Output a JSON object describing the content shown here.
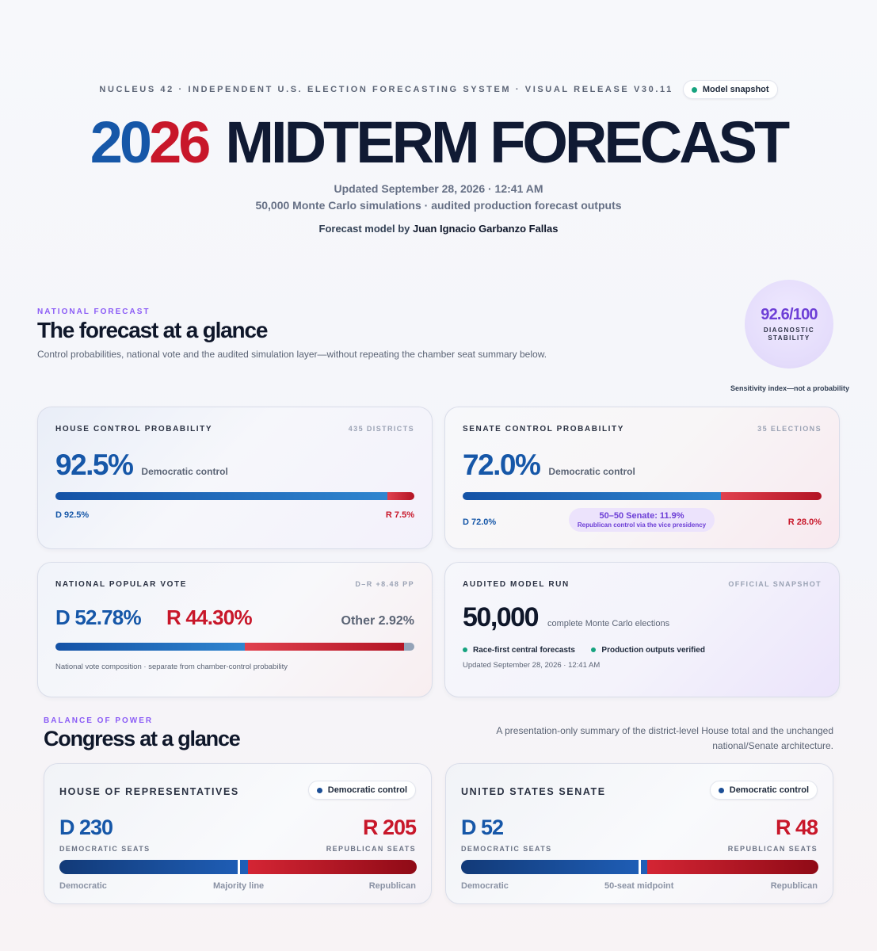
{
  "header": {
    "system_line": "NUCLEUS 42 · INDEPENDENT U.S. ELECTION FORECASTING SYSTEM · VISUAL RELEASE V30.11",
    "snapshot_pill": "Model snapshot",
    "title_year_a": "20",
    "title_year_b": "26",
    "title_rest": "MIDTERM FORECAST",
    "updated": "Updated September 28, 2026 · 12:41 AM",
    "simulations": "50,000 Monte Carlo simulations · audited production forecast outputs",
    "byline_prefix": "Forecast model by",
    "byline_name": "Juan Ignacio Garbanzo Fallas"
  },
  "national": {
    "eyebrow": "NATIONAL FORECAST",
    "title": "The forecast at a glance",
    "subtitle": "Control probabilities, national vote and the audited simulation layer—without repeating the chamber seat summary below.",
    "diagnostic_score": "92.6/100",
    "diagnostic_label_1": "DIAGNOSTIC",
    "diagnostic_label_2": "STABILITY",
    "sensitivity_note": "Sensitivity index—not a probability"
  },
  "house_card": {
    "title": "HOUSE CONTROL PROBABILITY",
    "meta": "435 DISTRICTS",
    "value": "92.5%",
    "value_caption": "Democratic control",
    "d_label": "D 92.5%",
    "r_label": "R 7.5%",
    "d_share": 92.5,
    "r_share": 7.5
  },
  "senate_card": {
    "title": "SENATE CONTROL PROBABILITY",
    "meta": "35 ELECTIONS",
    "value": "72.0%",
    "value_caption": "Democratic control",
    "d_label": "D 72.0%",
    "r_label": "R 28.0%",
    "d_share": 72.0,
    "r_share": 28.0,
    "tie_title": "50–50 Senate: 11.9%",
    "tie_note": "Republican control via the vice presidency"
  },
  "vote_card": {
    "title": "NATIONAL POPULAR VOTE",
    "meta": "D–R +8.48 PP",
    "d_value": "D 52.78%",
    "r_value": "R 44.30%",
    "other_value": "Other 2.92%",
    "d_share": 52.78,
    "r_share": 44.3,
    "other_share": 2.92,
    "note": "National vote composition · separate from chamber-control probability"
  },
  "run_card": {
    "title": "AUDITED MODEL RUN",
    "meta": "OFFICIAL SNAPSHOT",
    "count": "50,000",
    "count_caption": "complete Monte Carlo elections",
    "check_1": "Race-first central forecasts",
    "check_2": "Production outputs verified",
    "updated": "Updated September 28, 2026 · 12:41 AM"
  },
  "balance": {
    "eyebrow": "BALANCE OF POWER",
    "title": "Congress at a glance",
    "note_line_1": "A presentation-only summary of the district-level House total and the unchanged",
    "note_line_2": "national/Senate architecture."
  },
  "house_seats": {
    "title": "HOUSE OF REPRESENTATIVES",
    "control_pill": "Democratic control",
    "d_seats": "D 230",
    "r_seats": "R 205",
    "d_caption": "DEMOCRATIC SEATS",
    "r_caption": "REPUBLICAN SEATS",
    "d_count": 230,
    "r_count": 205,
    "threshold": 218,
    "foot_left": "Democratic",
    "foot_mid": "Majority line",
    "foot_right": "Republican"
  },
  "senate_seats": {
    "title": "UNITED STATES SENATE",
    "control_pill": "Democratic control",
    "d_seats": "D 52",
    "r_seats": "R 48",
    "d_caption": "DEMOCRATIC SEATS",
    "r_caption": "REPUBLICAN SEATS",
    "d_count": 52,
    "r_count": 48,
    "threshold": 50,
    "foot_left": "Democratic",
    "foot_mid": "50-seat midpoint",
    "foot_right": "Republican"
  },
  "colors": {
    "democratic": "#1657a8",
    "republican": "#c8172a",
    "accent": "#8b5cf6",
    "ink": "#0f172a"
  }
}
